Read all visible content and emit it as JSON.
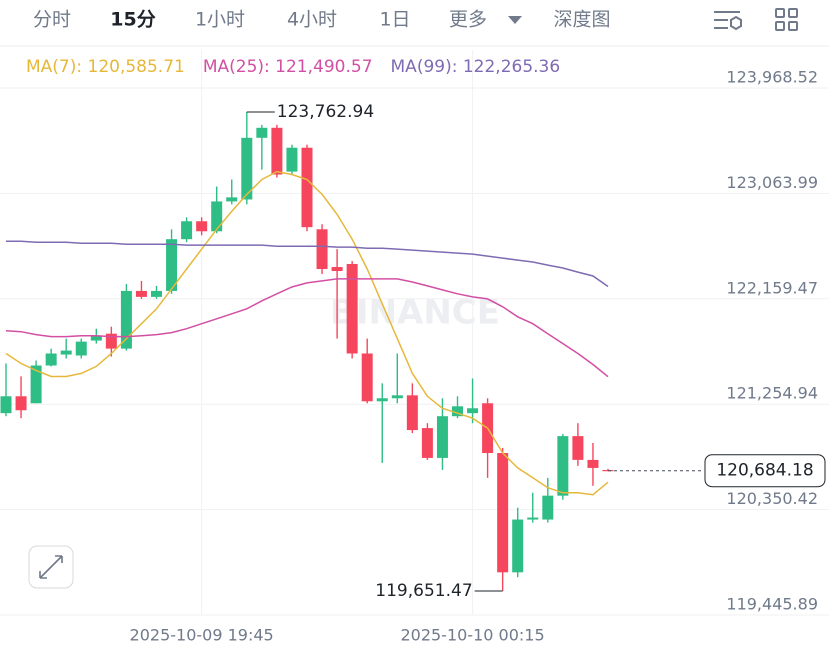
{
  "tabs": [
    "分时",
    "15分",
    "1小时",
    "4小时",
    "1日",
    "更多",
    "深度图"
  ],
  "active_tab": 1,
  "chart_data": {
    "type": "candlestick",
    "watermark": "BINANCE",
    "categories": [
      null,
      null,
      null,
      null,
      null,
      null,
      null,
      null,
      null,
      null,
      null,
      null,
      null,
      "2025-10-09 19:45",
      null,
      null,
      null,
      null,
      null,
      null,
      null,
      null,
      null,
      null,
      null,
      null,
      null,
      null,
      null,
      null,
      null,
      "2025-10-10 00:15",
      null,
      null,
      null,
      null,
      null,
      null,
      null,
      null,
      null
    ],
    "open": [
      121178,
      121323,
      121263,
      121587,
      121681,
      121673,
      121801,
      121860,
      121732,
      122227,
      122176,
      122227,
      122671,
      122825,
      122739,
      122995,
      123012,
      123541,
      123627,
      123251,
      123456,
      122756,
      122432,
      122458,
      121690,
      121280,
      121306,
      121331,
      121050,
      120794,
      121152,
      121178,
      121263,
      120836,
      119812,
      120265,
      120265,
      120470,
      120981,
      120777,
      120690
    ],
    "high": [
      121605,
      121494,
      121630,
      121732,
      121818,
      121818,
      121903,
      121920,
      122287,
      122313,
      122270,
      122756,
      122859,
      122859,
      123123,
      123183,
      123762.94,
      123652,
      123652,
      123482,
      123482,
      122799,
      122586,
      122483,
      121818,
      121434,
      121690,
      121434,
      121092,
      121306,
      121323,
      121476,
      121306,
      120879,
      120367,
      120495,
      120623,
      120999,
      121092,
      120922,
      120700
    ],
    "low": [
      121152,
      121135,
      121263,
      121579,
      121647,
      121647,
      121775,
      121664,
      121715,
      122159,
      122159,
      122202,
      122646,
      122705,
      122722,
      122970,
      122970,
      123268,
      123200,
      123226,
      122739,
      122372,
      121818,
      121647,
      121263,
      120751,
      121263,
      121007,
      120777,
      120691,
      121135,
      121092,
      120623,
      119651.47,
      119770,
      120239,
      120239,
      120435,
      120726,
      120555,
      120680
    ],
    "close": [
      121323,
      121203,
      121587,
      121690,
      121715,
      121792,
      121843,
      121732,
      122227,
      122176,
      122227,
      122671,
      122825,
      122739,
      122995,
      123030,
      123541,
      123627,
      123226,
      123456,
      122774,
      122415,
      122398,
      121690,
      121280,
      121306,
      121331,
      121033,
      120794,
      121152,
      121237,
      121220,
      120836,
      119812,
      120265,
      120282,
      120470,
      120981,
      120777,
      120708,
      120684.18
    ],
    "up_color": "#2ebd85",
    "down_color": "#f6465d",
    "series": [
      {
        "label": "MA(7): 120,585.71",
        "color": "#e6b83a",
        "values": [
          121690,
          121604,
          121545,
          121493,
          121493,
          121519,
          121579,
          121690,
          121818,
          121946,
          122074,
          122244,
          122415,
          122586,
          122756,
          122910,
          123055,
          123183,
          123251,
          123226,
          123183,
          123055,
          122884,
          122671,
          122415,
          122116,
          121818,
          121519,
          121323,
          121220,
          121178,
          121135,
          121050,
          120836,
          120708,
          120623,
          120538,
          120495,
          120495,
          120478,
          120585.71
        ]
      },
      {
        "label": "MA(25): 121,490.57",
        "color": "#d24fa3",
        "values": [
          121886,
          121877,
          121852,
          121835,
          121835,
          121843,
          121843,
          121835,
          121835,
          121843,
          121852,
          121869,
          121903,
          121946,
          121988,
          122031,
          122074,
          122142,
          122202,
          122261,
          122296,
          122313,
          122330,
          122330,
          122330,
          122330,
          122330,
          122304,
          122270,
          122236,
          122202,
          122176,
          122159,
          122091,
          122005,
          121946,
          121860,
          121775,
          121690,
          121596,
          121490.57
        ]
      },
      {
        "label": "MA(99): 122,265.36",
        "color": "#7e6bb3",
        "values": [
          122654,
          122654,
          122645,
          122645,
          122645,
          122637,
          122637,
          122637,
          122628,
          122628,
          122628,
          122628,
          122620,
          122620,
          122620,
          122620,
          122620,
          122620,
          122611,
          122611,
          122611,
          122611,
          122603,
          122603,
          122594,
          122594,
          122586,
          122577,
          122569,
          122560,
          122552,
          122543,
          122526,
          122509,
          122492,
          122475,
          122449,
          122424,
          122389,
          122355,
          122265.36
        ]
      }
    ],
    "ylim": [
      119445.89,
      123968.52
    ],
    "yticks": [
      {
        "value": 119445.89,
        "label": "119,445.89"
      },
      {
        "value": 120350.42,
        "label": "120,350.42"
      },
      {
        "value": 121254.94,
        "label": "121,254.94"
      },
      {
        "value": 122159.47,
        "label": "122,159.47"
      },
      {
        "value": 123063.99,
        "label": "123,063.99"
      },
      {
        "value": 123968.52,
        "label": "123,968.52"
      }
    ],
    "grid": true,
    "annotations": [
      {
        "label": "123,762.94",
        "value": 123762.94
      },
      {
        "label": "119,651.47",
        "value": 119651.47
      }
    ],
    "current_price": {
      "label": "120,684.18",
      "value": 120684.18
    }
  }
}
